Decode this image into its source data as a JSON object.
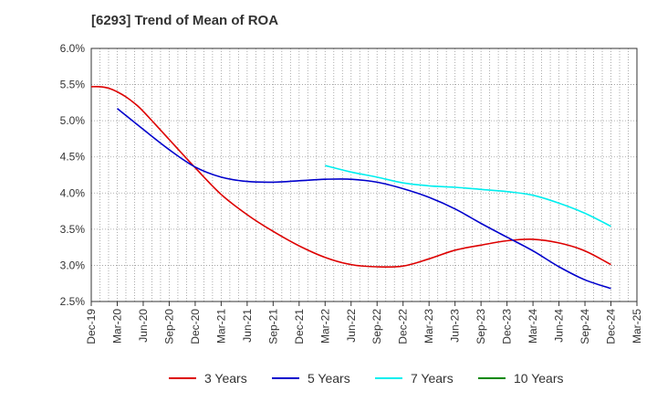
{
  "chart_data": {
    "type": "line",
    "title": "[6293]  Trend of Mean of ROA",
    "xlabel": "",
    "ylabel": "",
    "x_ticks": [
      "Dec-19",
      "Mar-20",
      "Jun-20",
      "Sep-20",
      "Dec-20",
      "Mar-21",
      "Jun-21",
      "Sep-21",
      "Dec-21",
      "Mar-22",
      "Jun-22",
      "Sep-22",
      "Dec-22",
      "Mar-23",
      "Jun-23",
      "Sep-23",
      "Dec-23",
      "Mar-24",
      "Jun-24",
      "Sep-24",
      "Dec-24",
      "Mar-25"
    ],
    "y_ticks": [
      "6.0%",
      "5.5%",
      "5.0%",
      "4.5%",
      "4.0%",
      "3.5%",
      "3.0%",
      "2.5%"
    ],
    "ylim": [
      2.5,
      6.0
    ],
    "y_unit": "%",
    "grid": true,
    "legend_position": "bottom",
    "series": [
      {
        "name": "3 Years",
        "color": "#dd0000",
        "x": [
          "Dec-19",
          "Jan-20",
          "Feb-20",
          "Mar-20",
          "Apr-20",
          "May-20",
          "Jun-20",
          "Sep-20",
          "Dec-20",
          "Mar-21",
          "Jun-21",
          "Sep-21",
          "Dec-21",
          "Mar-22",
          "Jun-22",
          "Sep-22",
          "Dec-22",
          "Mar-23",
          "Jun-23",
          "Sep-23",
          "Dec-23",
          "Mar-24",
          "Jun-24",
          "Sep-24",
          "Dec-24"
        ],
        "values": [
          5.47,
          5.47,
          5.45,
          5.4,
          5.33,
          5.24,
          5.13,
          4.74,
          4.35,
          3.98,
          3.7,
          3.47,
          3.27,
          3.11,
          3.01,
          2.98,
          2.99,
          3.09,
          3.21,
          3.28,
          3.34,
          3.36,
          3.31,
          3.2,
          3.01
        ]
      },
      {
        "name": "5 Years",
        "color": "#0000cc",
        "x": [
          "Mar-20",
          "Jun-20",
          "Sep-20",
          "Dec-20",
          "Mar-21",
          "Jun-21",
          "Sep-21",
          "Dec-21",
          "Mar-22",
          "Jun-22",
          "Sep-22",
          "Dec-22",
          "Mar-23",
          "Jun-23",
          "Sep-23",
          "Dec-23",
          "Mar-24",
          "Jun-24",
          "Sep-24",
          "Dec-24"
        ],
        "values": [
          5.17,
          4.88,
          4.6,
          4.36,
          4.22,
          4.16,
          4.15,
          4.17,
          4.19,
          4.19,
          4.15,
          4.06,
          3.94,
          3.78,
          3.58,
          3.39,
          3.2,
          2.98,
          2.8,
          2.68
        ]
      },
      {
        "name": "7 Years",
        "color": "#00eeee",
        "x": [
          "Mar-22",
          "Jun-22",
          "Sep-22",
          "Dec-22",
          "Mar-23",
          "Jun-23",
          "Sep-23",
          "Dec-23",
          "Mar-24",
          "Jun-24",
          "Sep-24",
          "Dec-24"
        ],
        "values": [
          4.38,
          4.29,
          4.22,
          4.14,
          4.1,
          4.08,
          4.05,
          4.02,
          3.97,
          3.86,
          3.72,
          3.54
        ]
      },
      {
        "name": "10 Years",
        "color": "#008800",
        "x": [],
        "values": []
      }
    ]
  }
}
